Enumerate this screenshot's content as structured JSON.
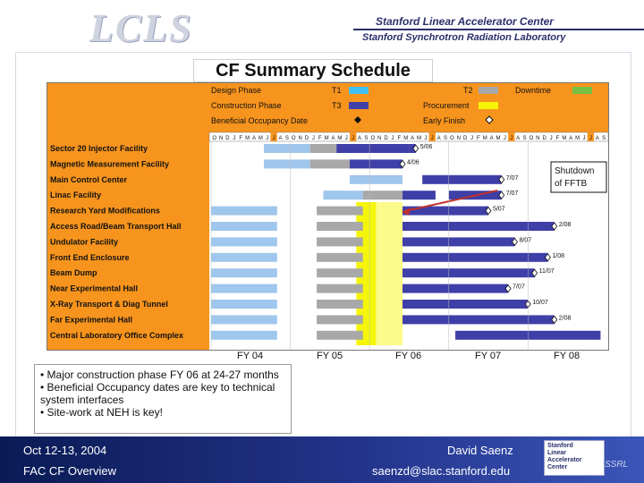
{
  "header": {
    "logo": "LCLS",
    "org1": "Stanford Linear Accelerator Center",
    "org2": "Stanford Synchrotron Radiation Laboratory"
  },
  "slide": {
    "title": "CF Summary Schedule",
    "bullets": [
      "• Major construction phase FY 06 at 24-27 months",
      "• Beneficial Occupancy dates are key to technical system interfaces",
      "• Site-work at NEH is key!"
    ]
  },
  "legend": {
    "design_phase": "Design Phase",
    "construction_phase": "Construction Phase",
    "beneficial_occupancy": "Beneficial Occupancy Date",
    "t1": "T1",
    "t2": "T2",
    "t3": "T3",
    "downtime": "Downtime",
    "procurement": "Procurement",
    "early_finish": "Early Finish"
  },
  "colors": {
    "orange": "#f7941d",
    "blue": "#3f3fa8",
    "lightblue": "#9fc6ec",
    "gray": "#a8a8a8",
    "yellow": "#f5f50a",
    "green": "#76c043",
    "t1": "#40c0f0"
  },
  "months": "ONDJFMAMJJASONDJFMAMJJASONDJFMAMJJASONDJFMAMJJASONDJFMAMJJAS",
  "annotation": "Shutdown of FFTB",
  "fiscal_years": [
    "FY 04",
    "FY 05",
    "FY 06",
    "FY 07",
    "FY 08"
  ],
  "chart_data": {
    "type": "gantt",
    "title": "CF Summary Schedule",
    "time_axis": {
      "start": "Oct 2003",
      "unit": "month",
      "fiscal_years": [
        "FY 04",
        "FY 05",
        "FY 06",
        "FY 07",
        "FY 08"
      ]
    },
    "tasks": [
      {
        "name": "Sector 20 Injector Facility",
        "finish": "5/06",
        "segments": [
          {
            "phase": "T1",
            "start": 8,
            "end": 15
          },
          {
            "phase": "design",
            "start": 15,
            "end": 19
          },
          {
            "phase": "construction",
            "start": 19,
            "end": 30
          },
          {
            "phase": "early",
            "start": 30,
            "end": 31
          }
        ]
      },
      {
        "name": "Magnetic Measurement Facility",
        "finish": "4/06",
        "segments": [
          {
            "phase": "T1",
            "start": 8,
            "end": 15
          },
          {
            "phase": "design",
            "start": 15,
            "end": 21
          },
          {
            "phase": "construction",
            "start": 21,
            "end": 29
          }
        ]
      },
      {
        "name": "Main Control Center",
        "finish": "7/07",
        "segments": [
          {
            "phase": "T1",
            "start": 21,
            "end": 29
          },
          {
            "phase": "construction",
            "start": 32,
            "end": 44
          }
        ]
      },
      {
        "name": "Linac Facility",
        "finish": "7/07",
        "segments": [
          {
            "phase": "T1",
            "start": 17,
            "end": 23
          },
          {
            "phase": "design",
            "start": 23,
            "end": 29
          },
          {
            "phase": "T3",
            "start": 29,
            "end": 34
          },
          {
            "phase": "construction",
            "start": 36,
            "end": 44
          }
        ]
      },
      {
        "name": "Research Yard Modifications",
        "finish": "5/07",
        "segments": [
          {
            "phase": "T1",
            "start": 0,
            "end": 10
          },
          {
            "phase": "design",
            "start": 16,
            "end": 23
          },
          {
            "phase": "construction",
            "start": 29,
            "end": 42
          }
        ]
      },
      {
        "name": "Access Road/Beam Transport Hall",
        "finish": "2/08",
        "segments": [
          {
            "phase": "T1",
            "start": 0,
            "end": 10
          },
          {
            "phase": "design",
            "start": 16,
            "end": 23
          },
          {
            "phase": "construction",
            "start": 29,
            "end": 52
          }
        ]
      },
      {
        "name": "Undulator Facility",
        "finish": "8/07",
        "segments": [
          {
            "phase": "T1",
            "start": 0,
            "end": 10
          },
          {
            "phase": "design",
            "start": 16,
            "end": 23
          },
          {
            "phase": "construction",
            "start": 29,
            "end": 46
          }
        ]
      },
      {
        "name": "Front End Enclosure",
        "finish": "1/08",
        "segments": [
          {
            "phase": "T1",
            "start": 0,
            "end": 10
          },
          {
            "phase": "design",
            "start": 16,
            "end": 23
          },
          {
            "phase": "construction",
            "start": 29,
            "end": 51
          }
        ]
      },
      {
        "name": "Beam Dump",
        "finish": "11/07",
        "segments": [
          {
            "phase": "T1",
            "start": 0,
            "end": 10
          },
          {
            "phase": "design",
            "start": 16,
            "end": 23
          },
          {
            "phase": "construction",
            "start": 29,
            "end": 49
          }
        ]
      },
      {
        "name": "Near Experimental Hall",
        "finish": "7/07",
        "segments": [
          {
            "phase": "T1",
            "start": 0,
            "end": 10
          },
          {
            "phase": "design",
            "start": 16,
            "end": 23
          },
          {
            "phase": "construction",
            "start": 29,
            "end": 45
          }
        ]
      },
      {
        "name": "X-Ray Transport & Diag Tunnel",
        "finish": "10/07",
        "segments": [
          {
            "phase": "T1",
            "start": 0,
            "end": 10
          },
          {
            "phase": "design",
            "start": 16,
            "end": 23
          },
          {
            "phase": "construction",
            "start": 29,
            "end": 48
          }
        ]
      },
      {
        "name": "Far Experimental Hall",
        "finish": "2/08",
        "segments": [
          {
            "phase": "T1",
            "start": 0,
            "end": 10
          },
          {
            "phase": "design",
            "start": 16,
            "end": 23
          },
          {
            "phase": "construction",
            "start": 29,
            "end": 52
          }
        ]
      },
      {
        "name": "Central Laboratory Office Complex",
        "finish": "",
        "segments": [
          {
            "phase": "T1",
            "start": 0,
            "end": 10
          },
          {
            "phase": "design",
            "start": 16,
            "end": 23
          },
          {
            "phase": "construction",
            "start": 37,
            "end": 59
          }
        ]
      }
    ]
  },
  "footer": {
    "date": "Oct 12-13, 2004",
    "event": "FAC CF Overview",
    "presenter": "David Saenz",
    "email": "saenzd@slac.stanford.edu",
    "slac_lines": [
      "Stanford",
      "Linear",
      "Accelerator",
      "Center"
    ],
    "ssrl": "SSRL"
  }
}
